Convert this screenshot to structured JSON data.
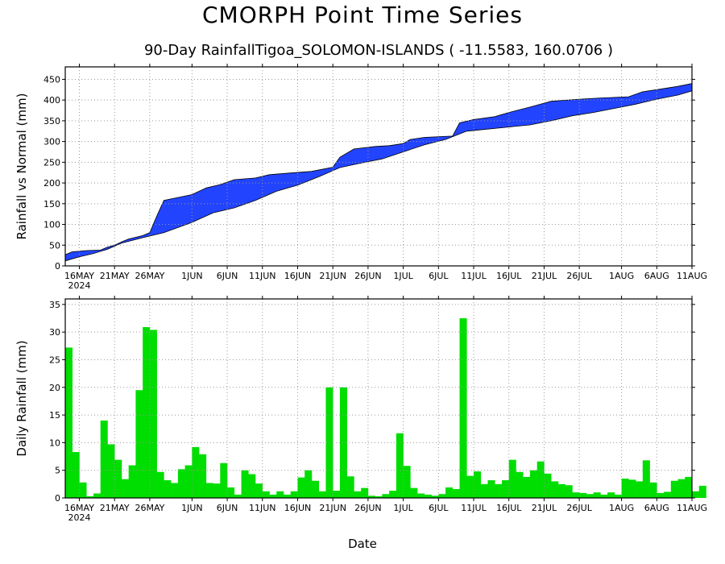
{
  "title": "CMORPH Point Time Series",
  "subtitle": "90-Day RainfallTigoa_SOLOMON-ISLANDS ( -11.5583, 160.0706 )",
  "xlabel": "Date",
  "colors": {
    "band": "#2244ff",
    "bars": "#00dd00",
    "grid": "#999999"
  },
  "chart_data": [
    {
      "type": "area",
      "ylabel": "Rainfall vs Normal (mm)",
      "ylim": [
        0,
        480
      ],
      "yticks": [
        0,
        50,
        100,
        150,
        200,
        250,
        300,
        350,
        400,
        450
      ],
      "xlim": [
        "2024-05-14",
        "2024-08-11"
      ],
      "xticks": [
        {
          "date": "2024-05-16",
          "label": "16MAY",
          "sub": "2024"
        },
        {
          "date": "2024-05-21",
          "label": "21MAY"
        },
        {
          "date": "2024-05-26",
          "label": "26MAY"
        },
        {
          "date": "2024-06-01",
          "label": "1JUN"
        },
        {
          "date": "2024-06-06",
          "label": "6JUN"
        },
        {
          "date": "2024-06-11",
          "label": "11JUN"
        },
        {
          "date": "2024-06-16",
          "label": "16JUN"
        },
        {
          "date": "2024-06-21",
          "label": "21JUN"
        },
        {
          "date": "2024-06-26",
          "label": "26JUN"
        },
        {
          "date": "2024-07-01",
          "label": "1JUL"
        },
        {
          "date": "2024-07-06",
          "label": "6JUL"
        },
        {
          "date": "2024-07-11",
          "label": "11JUL"
        },
        {
          "date": "2024-07-16",
          "label": "16JUL"
        },
        {
          "date": "2024-07-21",
          "label": "21JUL"
        },
        {
          "date": "2024-07-26",
          "label": "26JUL"
        },
        {
          "date": "2024-08-01",
          "label": "1AUG"
        },
        {
          "date": "2024-08-06",
          "label": "6AUG"
        },
        {
          "date": "2024-08-11",
          "label": "11AUG"
        }
      ],
      "grid": true,
      "series": [
        {
          "points": [
            [
              "2024-05-14",
              27
            ],
            [
              "2024-05-15",
              34
            ],
            [
              "2024-05-17",
              37
            ],
            [
              "2024-05-19",
              38
            ],
            [
              "2024-05-20",
              45
            ],
            [
              "2024-05-21",
              50
            ],
            [
              "2024-05-22",
              58
            ],
            [
              "2024-05-23",
              65
            ],
            [
              "2024-05-25",
              73
            ],
            [
              "2024-05-26",
              80
            ],
            [
              "2024-05-27",
              120
            ],
            [
              "2024-05-28",
              158
            ],
            [
              "2024-05-30",
              165
            ],
            [
              "2024-06-01",
              172
            ],
            [
              "2024-06-03",
              188
            ],
            [
              "2024-06-05",
              196
            ],
            [
              "2024-06-07",
              208
            ],
            [
              "2024-06-10",
              212
            ],
            [
              "2024-06-12",
              220
            ],
            [
              "2024-06-15",
              224
            ],
            [
              "2024-06-18",
              228
            ],
            [
              "2024-06-21",
              238
            ],
            [
              "2024-06-22",
              262
            ],
            [
              "2024-06-24",
              282
            ],
            [
              "2024-06-27",
              288
            ],
            [
              "2024-06-29",
              290
            ],
            [
              "2024-07-01",
              295
            ],
            [
              "2024-07-02",
              305
            ],
            [
              "2024-07-04",
              310
            ],
            [
              "2024-07-08",
              313
            ],
            [
              "2024-07-09",
              345
            ],
            [
              "2024-07-11",
              353
            ],
            [
              "2024-07-14",
              360
            ],
            [
              "2024-07-16",
              370
            ],
            [
              "2024-07-19",
              383
            ],
            [
              "2024-07-22",
              397
            ],
            [
              "2024-07-26",
              402
            ],
            [
              "2024-07-29",
              405
            ],
            [
              "2024-08-02",
              408
            ],
            [
              "2024-08-04",
              420
            ],
            [
              "2024-08-06",
              425
            ],
            [
              "2024-08-09",
              433
            ],
            [
              "2024-08-11",
              440
            ]
          ]
        },
        {
          "points": [
            [
              "2024-05-14",
              12
            ],
            [
              "2024-05-16",
              22
            ],
            [
              "2024-05-18",
              30
            ],
            [
              "2024-05-20",
              40
            ],
            [
              "2024-05-22",
              55
            ],
            [
              "2024-05-25",
              68
            ],
            [
              "2024-05-28",
              80
            ],
            [
              "2024-06-01",
              105
            ],
            [
              "2024-06-04",
              128
            ],
            [
              "2024-06-07",
              140
            ],
            [
              "2024-06-10",
              158
            ],
            [
              "2024-06-13",
              180
            ],
            [
              "2024-06-16",
              195
            ],
            [
              "2024-06-19",
              215
            ],
            [
              "2024-06-22",
              237
            ],
            [
              "2024-06-25",
              248
            ],
            [
              "2024-06-28",
              258
            ],
            [
              "2024-07-01",
              275
            ],
            [
              "2024-07-04",
              292
            ],
            [
              "2024-07-07",
              305
            ],
            [
              "2024-07-10",
              325
            ],
            [
              "2024-07-13",
              330
            ],
            [
              "2024-07-16",
              335
            ],
            [
              "2024-07-19",
              340
            ],
            [
              "2024-07-22",
              350
            ],
            [
              "2024-07-25",
              362
            ],
            [
              "2024-07-28",
              370
            ],
            [
              "2024-07-31",
              380
            ],
            [
              "2024-08-03",
              390
            ],
            [
              "2024-08-06",
              402
            ],
            [
              "2024-08-09",
              412
            ],
            [
              "2024-08-11",
              422
            ]
          ]
        }
      ]
    },
    {
      "type": "bar",
      "ylabel": "Daily Rainfall (mm)",
      "ylim": [
        0,
        36
      ],
      "yticks": [
        0,
        5,
        10,
        15,
        20,
        25,
        30,
        35
      ],
      "xlim": [
        "2024-05-14",
        "2024-08-11"
      ],
      "grid": true,
      "series": [
        {
          "start": "2024-05-14",
          "values": [
            27.2,
            8.3,
            2.8,
            0.3,
            0.8,
            14.0,
            9.7,
            6.9,
            3.4,
            5.9,
            19.5,
            30.9,
            30.4,
            4.7,
            3.2,
            2.7,
            5.2,
            5.9,
            9.2,
            7.9,
            2.7,
            2.6,
            6.3,
            1.9,
            0.6,
            5.0,
            4.3,
            2.6,
            1.2,
            0.6,
            1.2,
            0.6,
            1.2,
            3.7,
            5.0,
            3.1,
            1.2,
            20.0,
            1.3,
            20.0,
            3.9,
            1.2,
            1.8,
            0.4,
            0.3,
            0.7,
            1.3,
            11.7,
            5.8,
            1.8,
            0.8,
            0.6,
            0.4,
            0.7,
            1.9,
            1.6,
            32.5,
            4.0,
            4.8,
            2.5,
            3.2,
            2.5,
            3.2,
            6.9,
            4.7,
            3.8,
            5.0,
            6.6,
            4.4,
            3.0,
            2.5,
            2.3,
            1.0,
            0.9,
            0.7,
            1.0,
            0.6,
            1.0,
            0.6,
            3.5,
            3.3,
            3.0,
            6.8,
            2.8,
            0.9,
            1.1,
            3.1,
            3.4,
            3.8,
            1.2,
            2.2
          ]
        }
      ]
    }
  ]
}
